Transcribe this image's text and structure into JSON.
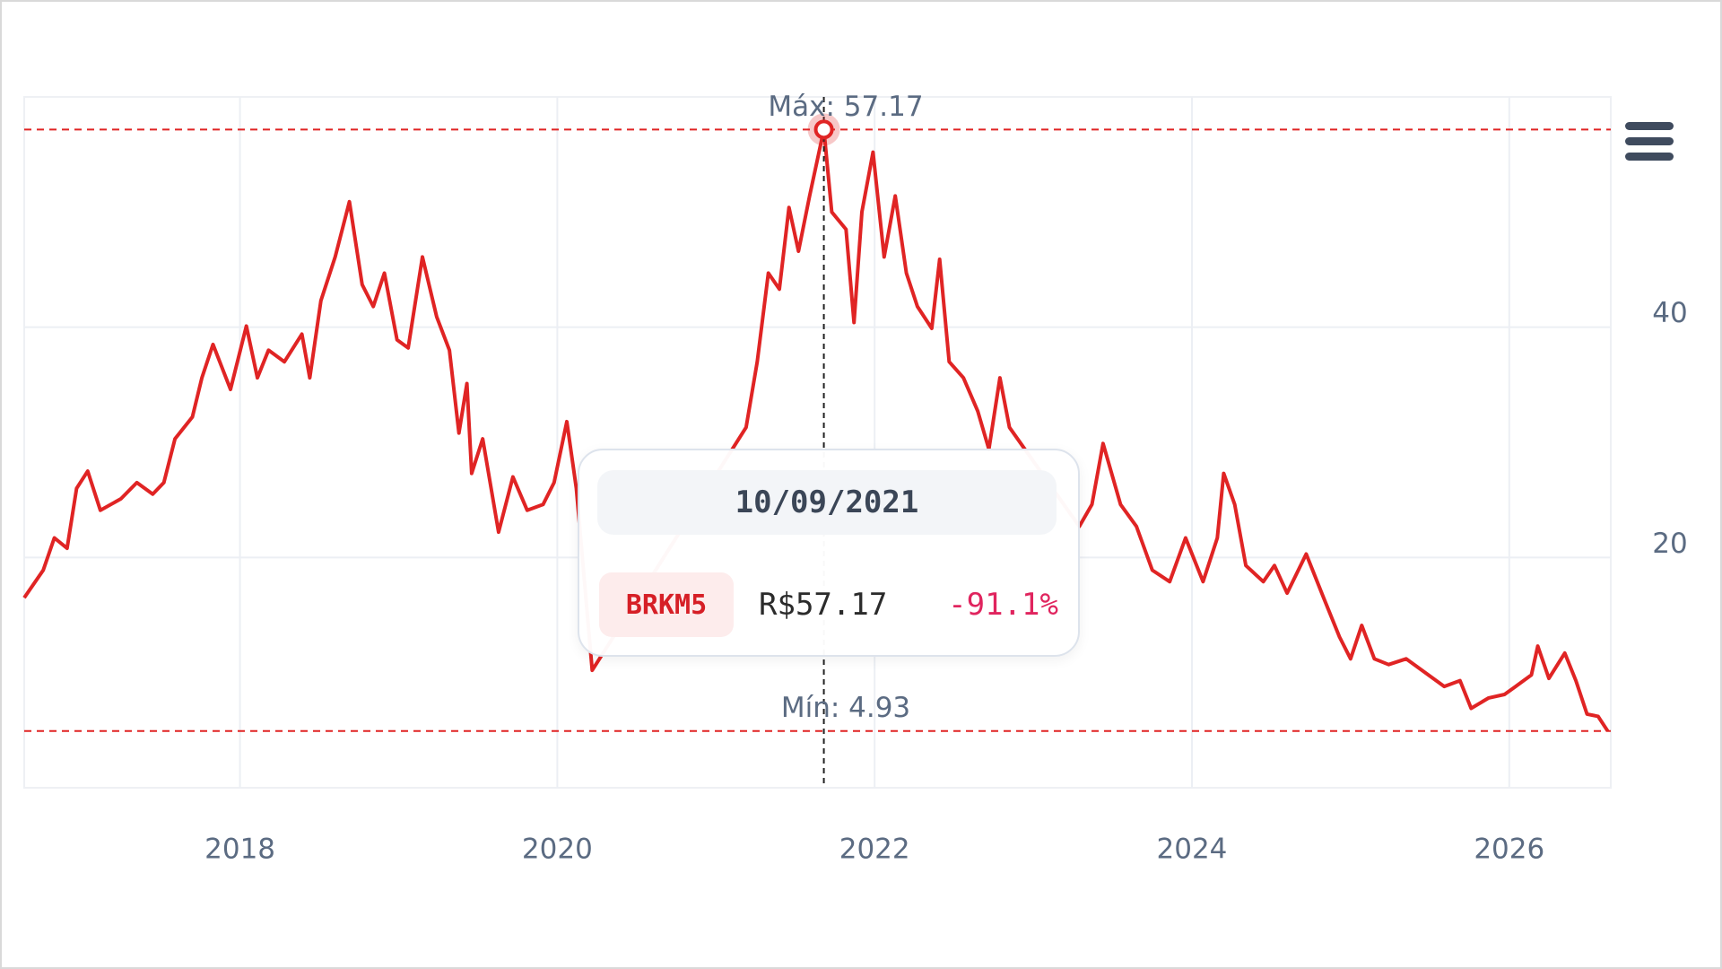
{
  "chart_data": {
    "type": "line",
    "xlim": [
      2016.64,
      2026.64
    ],
    "xticks": [
      2018,
      2020,
      2022,
      2024,
      2026
    ],
    "ylim": [
      0,
      60
    ],
    "yticks": [
      20,
      40
    ],
    "grid": true,
    "series": [
      {
        "name": "BRKM5",
        "color": "#e02424",
        "x": [
          2016.64,
          2016.76,
          2016.83,
          2016.91,
          2016.97,
          2017.04,
          2017.12,
          2017.25,
          2017.35,
          2017.45,
          2017.52,
          2017.59,
          2017.7,
          2017.76,
          2017.83,
          2017.94,
          2018.04,
          2018.11,
          2018.18,
          2018.28,
          2018.39,
          2018.44,
          2018.51,
          2018.6,
          2018.69,
          2018.77,
          2018.84,
          2018.91,
          2018.99,
          2019.06,
          2019.15,
          2019.24,
          2019.32,
          2019.38,
          2019.43,
          2019.46,
          2019.53,
          2019.63,
          2019.72,
          2019.81,
          2019.91,
          2019.98,
          2020.06,
          2020.12,
          2020.22,
          2021.19,
          2021.26,
          2021.33,
          2021.4,
          2021.46,
          2021.52,
          2021.59,
          2021.68,
          2021.73,
          2021.82,
          2021.87,
          2021.92,
          2021.99,
          2022.06,
          2022.13,
          2022.2,
          2022.27,
          2022.36,
          2022.41,
          2022.47,
          2022.56,
          2022.65,
          2022.72,
          2022.79,
          2022.85,
          2023.29,
          2023.37,
          2023.44,
          2023.55,
          2023.65,
          2023.75,
          2023.86,
          2023.96,
          2024.07,
          2024.16,
          2024.2,
          2024.27,
          2024.34,
          2024.45,
          2024.52,
          2024.6,
          2024.72,
          2024.83,
          2024.93,
          2025.0,
          2025.07,
          2025.15,
          2025.24,
          2025.35,
          2025.49,
          2025.59,
          2025.69,
          2025.76,
          2025.87,
          2025.97,
          2026.04,
          2026.14,
          2026.18,
          2026.25,
          2026.35,
          2026.42,
          2026.49,
          2026.56,
          2026.62
        ],
        "values": [
          16.5,
          18.9,
          21.7,
          20.8,
          26.0,
          27.5,
          24.1,
          25.1,
          26.5,
          25.5,
          26.5,
          30.3,
          32.2,
          35.6,
          38.5,
          34.6,
          40.1,
          35.6,
          38.0,
          37.0,
          39.4,
          35.6,
          42.3,
          46.1,
          50.9,
          43.7,
          41.8,
          44.7,
          38.9,
          38.2,
          46.1,
          40.9,
          38.0,
          30.8,
          35.1,
          27.3,
          30.3,
          22.2,
          27.0,
          24.1,
          24.6,
          26.5,
          31.8,
          26.0,
          10.2,
          31.3,
          37.0,
          44.7,
          43.3,
          50.4,
          46.6,
          51.4,
          57.17,
          50.0,
          48.5,
          40.4,
          50.0,
          55.2,
          46.1,
          51.4,
          44.7,
          41.8,
          39.9,
          45.9,
          37.0,
          35.6,
          32.7,
          29.4,
          35.6,
          31.3,
          22.7,
          24.6,
          29.9,
          24.6,
          22.7,
          18.9,
          17.9,
          21.7,
          17.9,
          21.7,
          27.3,
          24.6,
          19.3,
          17.9,
          19.3,
          16.9,
          20.3,
          16.5,
          13.1,
          11.2,
          14.1,
          11.2,
          10.7,
          11.2,
          9.8,
          8.8,
          9.3,
          6.9,
          7.8,
          8.1,
          8.8,
          9.8,
          12.3,
          9.5,
          11.7,
          9.3,
          6.4,
          6.2,
          4.93
        ]
      }
    ],
    "annotations": [
      {
        "value": 57.17,
        "label": "Máx: 57.17"
      },
      {
        "value": 4.93,
        "label": "Mín: 4.93"
      }
    ],
    "tooltip": {
      "date": "10/09/2021",
      "price": "R$57.17",
      "change": "-91.1%"
    }
  }
}
